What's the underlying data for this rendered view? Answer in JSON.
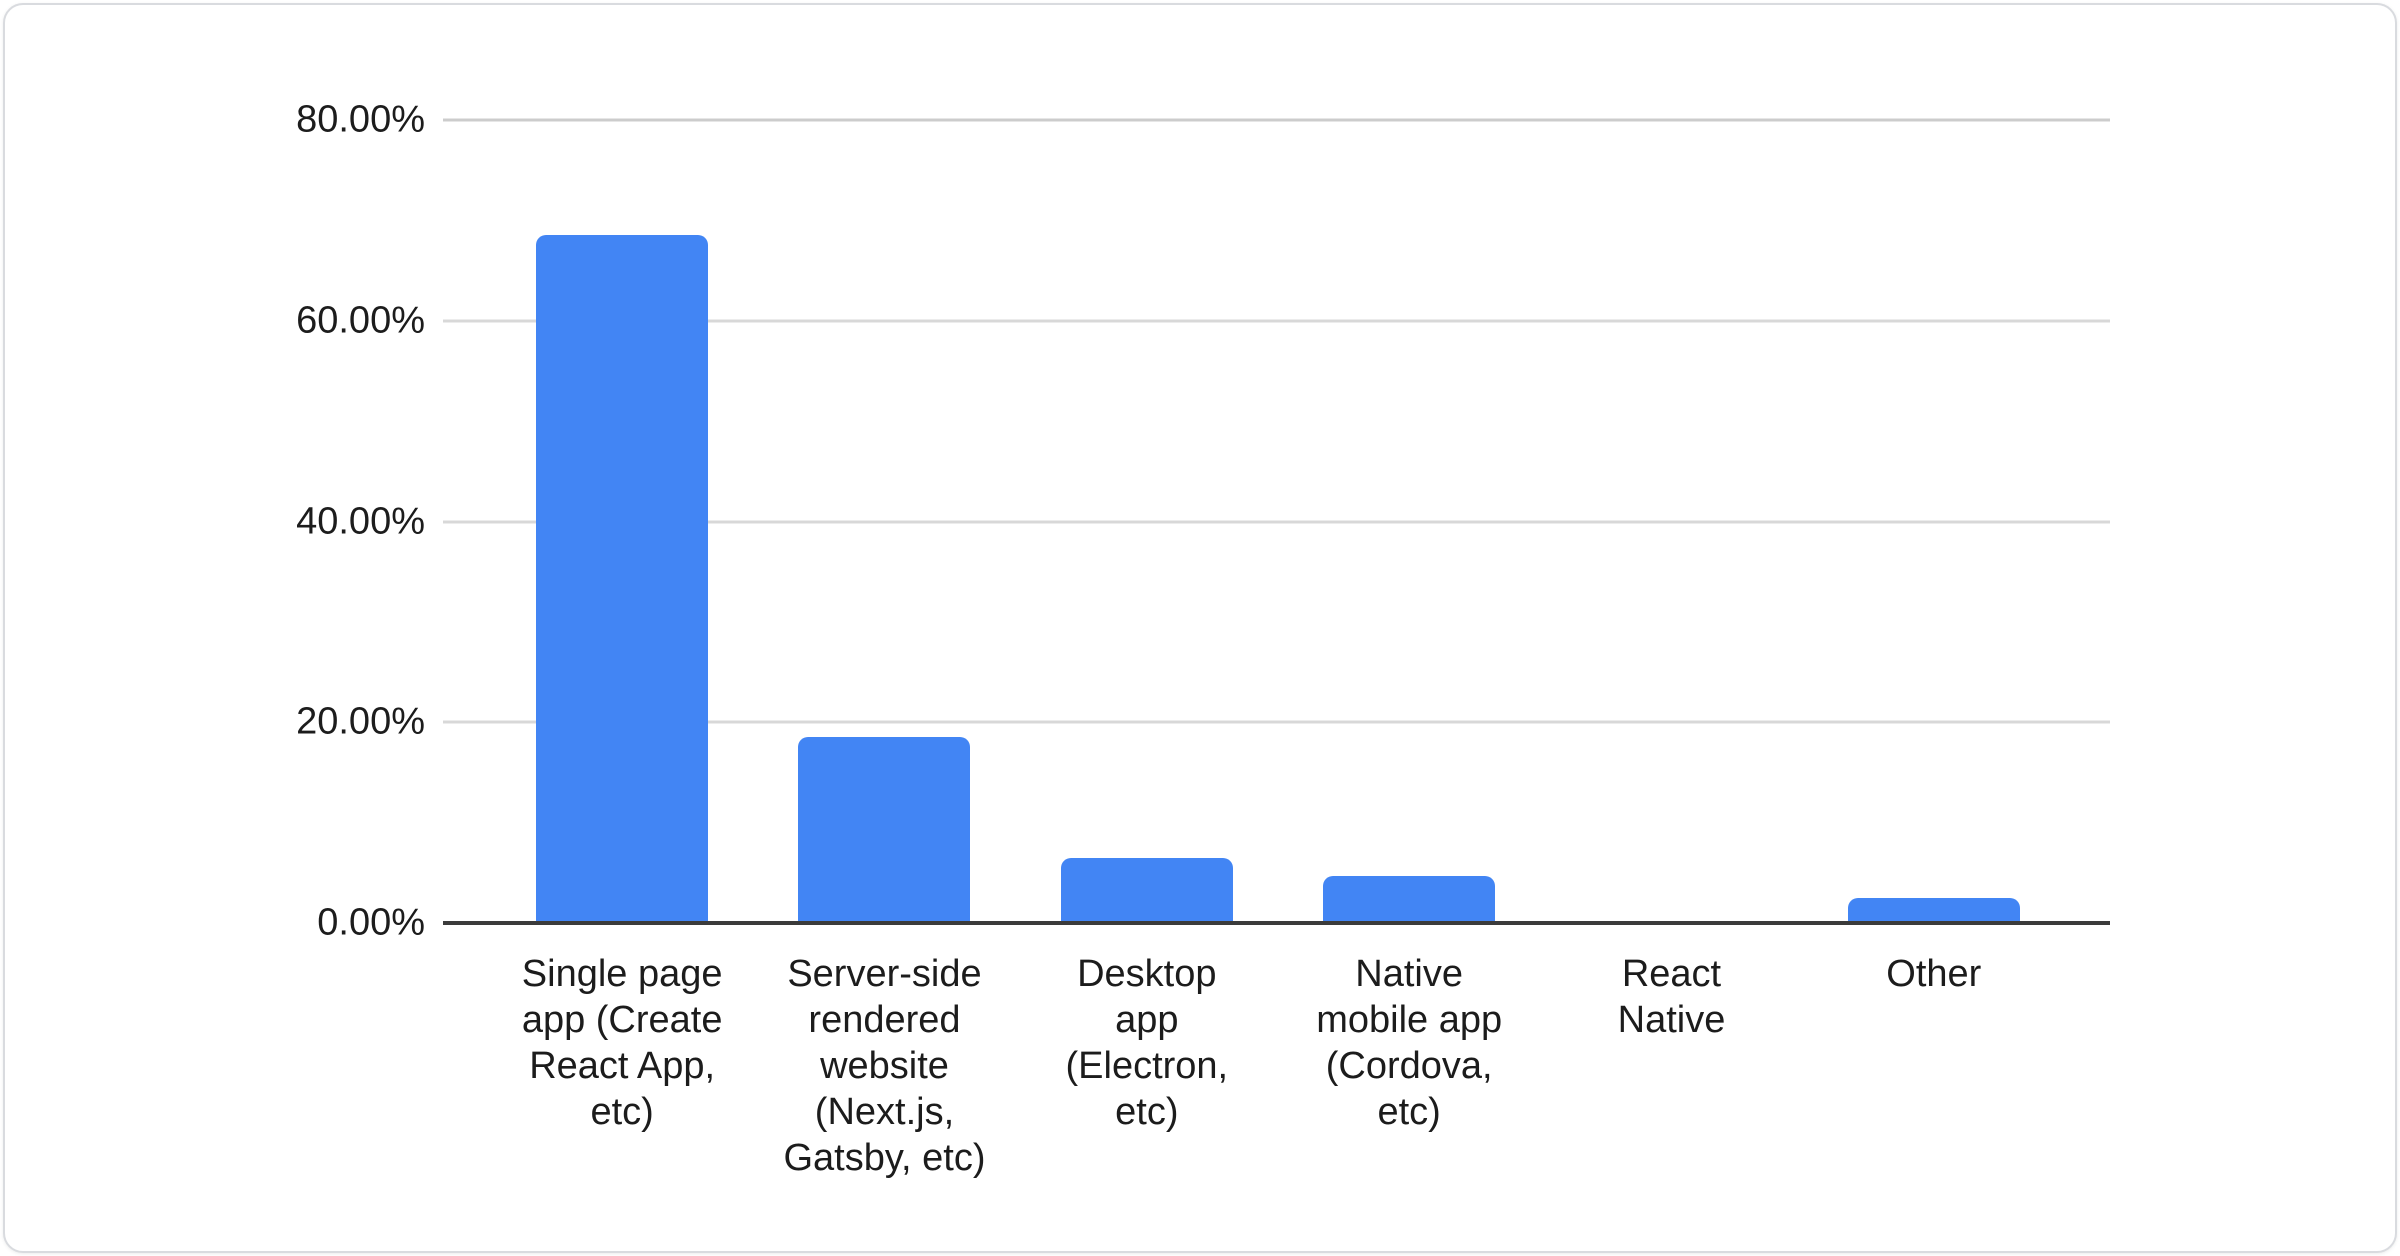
{
  "card": {
    "background": "#ffffff",
    "border_color": "#d9dbdf"
  },
  "chart_data": {
    "type": "bar",
    "title": "",
    "xlabel": "",
    "ylabel": "",
    "categories": [
      "Single page app (Create React App, etc)",
      "Server-side rendered website (Next.js, Gatsby, etc)",
      "Desktop app (Electron, etc)",
      "Native mobile app (Cordova, etc)",
      "React Native",
      "Other"
    ],
    "category_line_wraps": [
      "Single page\napp (Create\nReact App,\netc)",
      "Server-side\nrendered\nwebsite\n(Next.js,\nGatsby, etc)",
      "Desktop\napp\n(Electron,\netc)",
      "Native\nmobile app\n(Cordova,\netc)",
      "React\nNative",
      "Other"
    ],
    "values": [
      68.5,
      18.5,
      6.5,
      4.7,
      0,
      2.5
    ],
    "value_unit": "%",
    "ylim": [
      0,
      80
    ],
    "y_tick_step": 20,
    "y_tick_labels": [
      "80.00%",
      "60.00%",
      "40.00%",
      "20.00%",
      "0.00%"
    ],
    "grid": true,
    "legend": "none",
    "bar_color": "#4285f4",
    "gridline_color": "#d8d8d8",
    "axis_line_color": "#3b3b3b",
    "text_color": "#1c1c1c"
  }
}
